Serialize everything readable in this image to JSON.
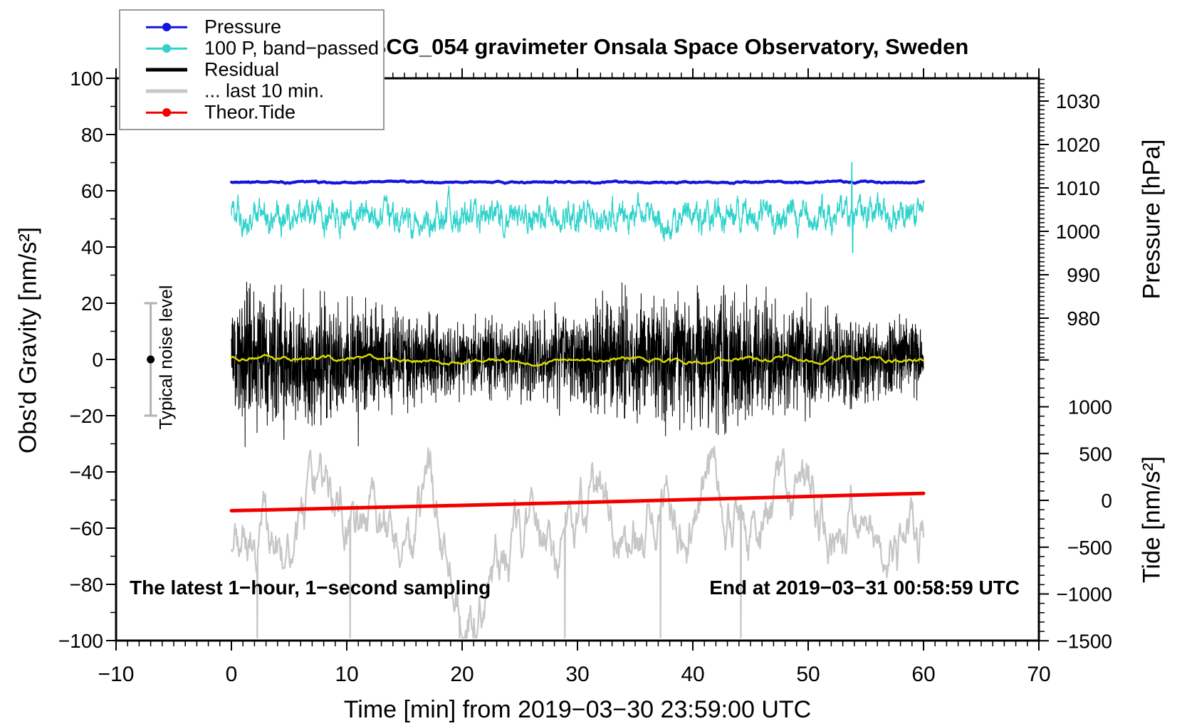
{
  "header": {
    "title": "SCG_054 gravimeter Onsala Space Observatory, Sweden"
  },
  "legend": {
    "items": [
      {
        "label": "Pressure",
        "color": "#1414dc",
        "thick": false,
        "marker": true
      },
      {
        "label": "100 P, band−passed",
        "color": "#2fd3cb",
        "thick": false,
        "marker": true
      },
      {
        "label": "Residual",
        "color": "#000000",
        "thick": true,
        "marker": false
      },
      {
        "label": "... last 10 min.",
        "color": "#c6c6c6",
        "thick": true,
        "marker": false
      },
      {
        "label": "Theor.Tide",
        "color": "#f20000",
        "thick": false,
        "marker": true
      }
    ]
  },
  "axes": {
    "x": {
      "title": "Time [min] from 2019−03−30 23:59:00 UTC",
      "range": [
        -10,
        70
      ],
      "minor_step": 1,
      "ticks": [
        {
          "v": -10,
          "label": "−10"
        },
        {
          "v": 0,
          "label": "0"
        },
        {
          "v": 10,
          "label": "10"
        },
        {
          "v": 20,
          "label": "20"
        },
        {
          "v": 30,
          "label": "30"
        },
        {
          "v": 40,
          "label": "40"
        },
        {
          "v": 50,
          "label": "50"
        },
        {
          "v": 60,
          "label": "60"
        },
        {
          "v": 70,
          "label": "70"
        }
      ]
    },
    "y_left": {
      "title": "Obs'd Gravity [nm/s²]",
      "range": [
        -100,
        100
      ],
      "minor_step": 10,
      "ticks": [
        {
          "v": 100,
          "label": "100"
        },
        {
          "v": 80,
          "label": "80"
        },
        {
          "v": 60,
          "label": "60"
        },
        {
          "v": 40,
          "label": "40"
        },
        {
          "v": 20,
          "label": "20"
        },
        {
          "v": 0,
          "label": "0"
        },
        {
          "v": -20,
          "label": "−20"
        },
        {
          "v": -40,
          "label": "−40"
        },
        {
          "v": -60,
          "label": "−60"
        },
        {
          "v": -80,
          "label": "−80"
        },
        {
          "v": -100,
          "label": "−100"
        }
      ]
    },
    "y_pressure": {
      "title": "Pressure [hPa]",
      "minor_step": 1,
      "minor_range": [
        971,
        1035
      ],
      "ticks": [
        {
          "v": 1030,
          "label": "1030"
        },
        {
          "v": 1020,
          "label": "1020"
        },
        {
          "v": 1010,
          "label": "1010"
        },
        {
          "v": 1000,
          "label": "1000"
        },
        {
          "v": 990,
          "label": "990"
        },
        {
          "v": 980,
          "label": "980"
        }
      ]
    },
    "y_tide": {
      "title": "Tide [nm/s²]",
      "minor_step": 100,
      "minor_range": [
        -1500,
        1500
      ],
      "ticks": [
        {
          "v": 1500,
          "label": ""
        },
        {
          "v": 1000,
          "label": "1000"
        },
        {
          "v": 500,
          "label": "500"
        },
        {
          "v": 0,
          "label": "0"
        },
        {
          "v": -500,
          "label": "−500"
        },
        {
          "v": -1000,
          "label": "−1000"
        },
        {
          "v": -1500,
          "label": "−1500"
        }
      ]
    }
  },
  "annotations": {
    "sampling": "The latest 1−hour, 1−second sampling",
    "end_time": "End at 2019−03−31 00:58:59 UTC",
    "noise_label": "Typical noise level"
  },
  "chart_data": {
    "type": "line",
    "title": "SCG_054 gravimeter Onsala Space Observatory, Sweden",
    "xlabel": "Time [min] from 2019−03−30 23:59:00 UTC",
    "x_range": [
      -10,
      70
    ],
    "x_data_span": [
      0,
      60
    ],
    "grid": false,
    "legend_position": "top-left",
    "axis_ranges": {
      "gravity_nm_s2": [
        -100,
        100
      ],
      "pressure_hPa_visible": [
        975,
        1035
      ],
      "tide_nm_s2": [
        -1500,
        1500
      ]
    },
    "series": [
      {
        "name": "Pressure",
        "axis": "pressure_hPa",
        "color": "#1414dc",
        "width": 4,
        "style": "flat-noisy-line",
        "mean": 1011.3,
        "noise_sd": 0.15
      },
      {
        "name": "100 P, band−passed",
        "axis": "gravity_nm_s2",
        "color": "#2fd3cb",
        "width": 1.4,
        "style": "band-limited-noise",
        "center": 51,
        "typical_amplitude": 7,
        "spike": {
          "t": 53.8,
          "max": 70,
          "min": 38
        }
      },
      {
        "name": "Residual",
        "axis": "gravity_nm_s2",
        "color": "#000000",
        "width": 1,
        "style": "dense-noise",
        "mean": 0,
        "typical_amplitude": 30,
        "max_excursion": 48
      },
      {
        "name": "Residual smoothed",
        "axis": "gravity_nm_s2",
        "color": "#d9d900",
        "width": 2.5,
        "style": "smooth-line",
        "mean": 0,
        "amplitude": 2.4
      },
      {
        "name": "... last 10 min.",
        "axis": "gravity_nm_s2",
        "color": "#c6c6c6",
        "width": 2.2,
        "style": "oscillation",
        "center": -64,
        "typical_amplitude": 15,
        "min": -99,
        "max": -25
      },
      {
        "name": "Theor.Tide",
        "axis": "tide_nm_s2",
        "color": "#f20000",
        "width": 5,
        "style": "thick-line",
        "points": [
          [
            0,
            -110
          ],
          [
            10,
            -82
          ],
          [
            20,
            -53
          ],
          [
            30,
            -23
          ],
          [
            40,
            9
          ],
          [
            50,
            42
          ],
          [
            60,
            75
          ]
        ]
      }
    ],
    "noise_reference": {
      "t": -7,
      "value": 0,
      "half_range": 20,
      "label": "Typical noise level"
    }
  }
}
